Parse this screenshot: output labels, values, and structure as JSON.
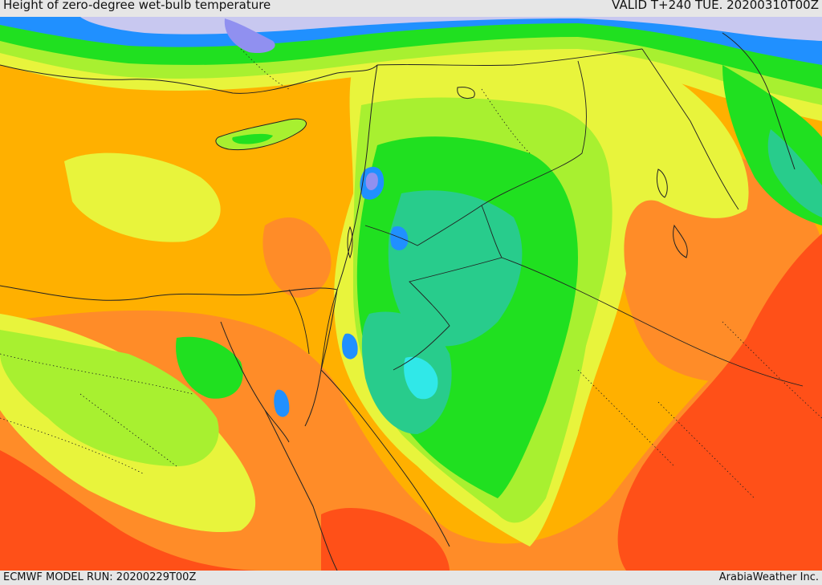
{
  "header": {
    "title": "Height of zero-degree wet-bulb temperature",
    "valid": "VALID T+240 TUE. 20200310T00Z"
  },
  "footer": {
    "model_run": "ECMWF MODEL RUN: 20200229T00Z",
    "credit": "ArabiaWeather Inc."
  },
  "map": {
    "colors": {
      "sea": "#ffb000",
      "warm": "#ff8c28",
      "hot": "#ff5018",
      "yellow": "#e8f43c",
      "lime": "#a8f030",
      "green": "#20e020",
      "teal": "#28cc8c",
      "cyan": "#30e8e8",
      "blue": "#2090ff",
      "violet": "#9090f0",
      "snow": "#c8c8f0",
      "border": "#222222"
    }
  }
}
